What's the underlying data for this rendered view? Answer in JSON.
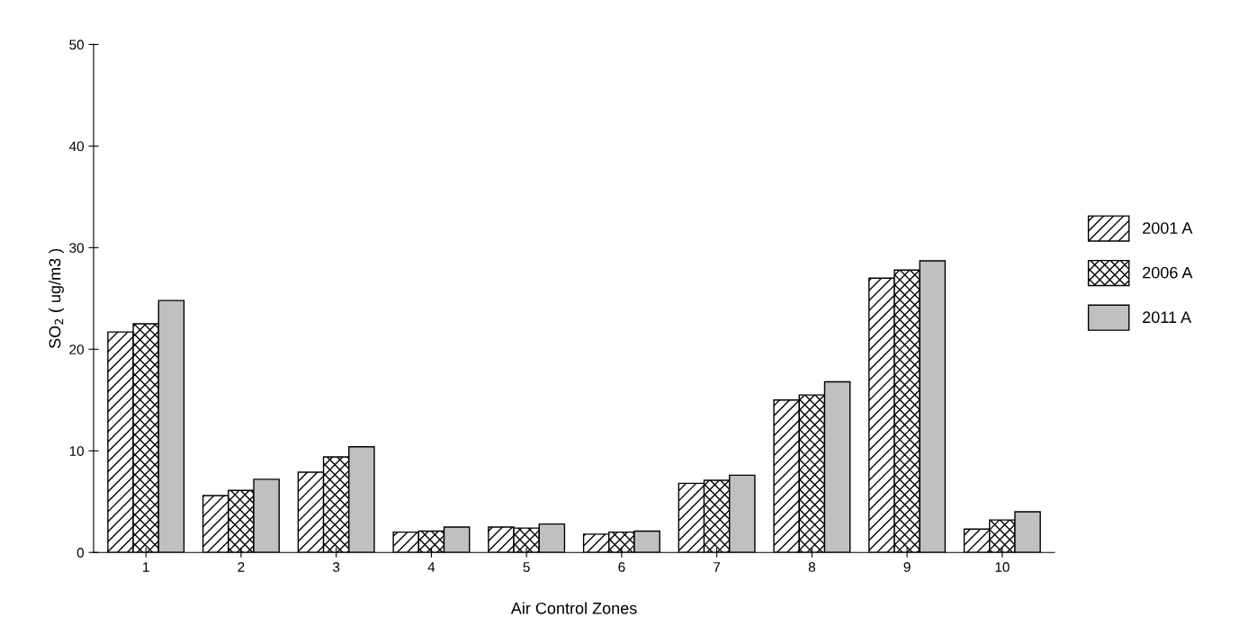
{
  "chart_data": {
    "type": "bar",
    "xlabel": "Air Control Zones",
    "ylabel": "SO$_{2}$ ( ug/m3 )",
    "categories": [
      "1",
      "2",
      "3",
      "4",
      "5",
      "6",
      "7",
      "8",
      "9",
      "10"
    ],
    "series": [
      {
        "name": "2001 A",
        "color": "#000000",
        "values": [
          21.7,
          5.6,
          7.9,
          2.0,
          2.5,
          1.8,
          6.8,
          15.0,
          27.0,
          2.3
        ]
      },
      {
        "name": "2006 A",
        "color": "#000000",
        "values": [
          22.5,
          6.1,
          9.4,
          2.1,
          2.4,
          2.0,
          7.1,
          15.5,
          27.8,
          3.2
        ]
      },
      {
        "name": "2011 A",
        "color": "#c0c0c0",
        "values": [
          24.8,
          7.2,
          10.4,
          2.5,
          2.8,
          2.1,
          7.6,
          16.8,
          28.7,
          4.0
        ]
      }
    ],
    "ylim": [
      0,
      50
    ],
    "yticks": [
      0,
      10,
      20,
      30,
      40,
      50
    ],
    "grid": false,
    "legend": "right"
  }
}
